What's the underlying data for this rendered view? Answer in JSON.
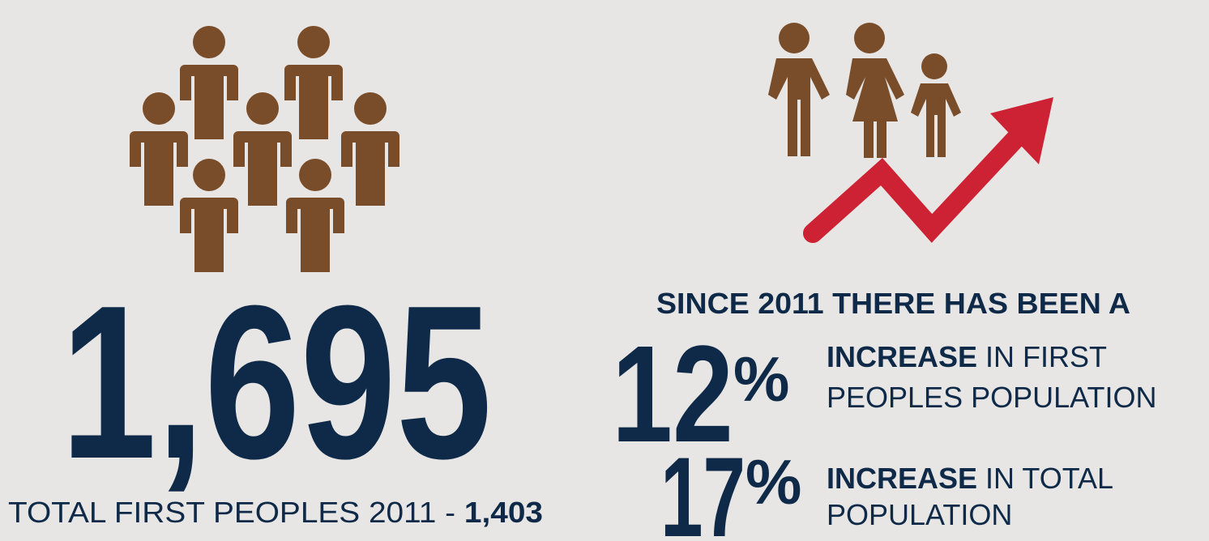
{
  "total": {
    "value": "1,695",
    "caption": "TOTAL FIRST PEOPLES 2011 - ",
    "previous": "1,403"
  },
  "growth": {
    "intro": "SINCE 2011 THERE HAS BEEN A",
    "items": [
      {
        "number": "12",
        "unit": "%",
        "bold": "INCREASE",
        "line1": " IN FIRST",
        "line2": "PEOPLES POPULATION"
      },
      {
        "number": "17",
        "unit": "%",
        "bold": "INCREASE",
        "line1": " IN TOTAL",
        "line2": "POPULATION"
      }
    ]
  }
}
